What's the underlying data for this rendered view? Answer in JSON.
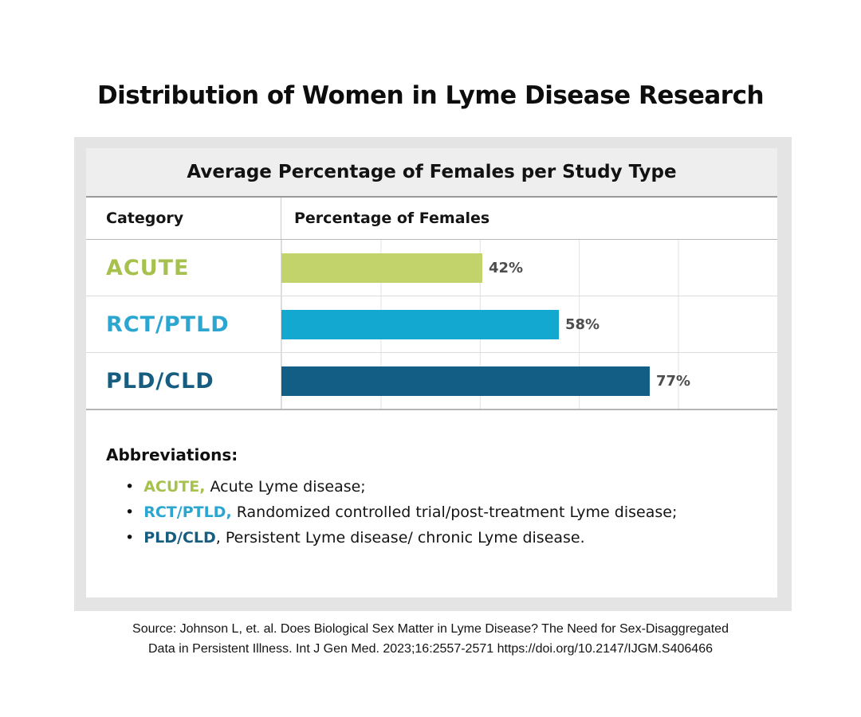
{
  "page_title": "Distribution of Women in Lyme Disease Research",
  "chart_data": {
    "type": "bar",
    "orientation": "horizontal",
    "title": "Average Percentage of Females per Study Type",
    "columns": [
      "Category",
      "Percentage of Females"
    ],
    "categories": [
      "ACUTE",
      "RCT/PTLD",
      "PLD/CLD"
    ],
    "values": [
      42,
      58,
      77
    ],
    "value_labels": [
      "42%",
      "58%",
      "77%"
    ],
    "bar_colors": [
      "#c1d36a",
      "#13a8d0",
      "#135e85"
    ],
    "category_label_colors": [
      "#a6c14e",
      "#2aa6d0",
      "#175d80"
    ],
    "xlim": [
      0,
      100
    ],
    "gridlines": "vertical lines every 20%",
    "legend": "none"
  },
  "abbreviations": {
    "heading": "Abbreviations:",
    "bullet": "•",
    "items": [
      {
        "term": "ACUTE,",
        "term_color": "#a6c14e",
        "definition": " Acute Lyme disease;"
      },
      {
        "term": "RCT/PTLD,",
        "term_color": "#2aa6d0",
        "definition": " Randomized controlled trial/post-treatment Lyme disease;"
      },
      {
        "term": "PLD/CLD",
        "term_color": "#175d80",
        "definition": ", Persistent Lyme disease/ chronic Lyme disease."
      }
    ]
  },
  "source": {
    "line1": "Source: Johnson L, et. al. Does Biological Sex Matter in Lyme Disease? The Need for Sex-Disaggregated",
    "line2": "Data in Persistent Illness. Int J Gen Med. 2023;16:2557-2571 https://doi.org/10.2147/IJGM.S406466"
  }
}
